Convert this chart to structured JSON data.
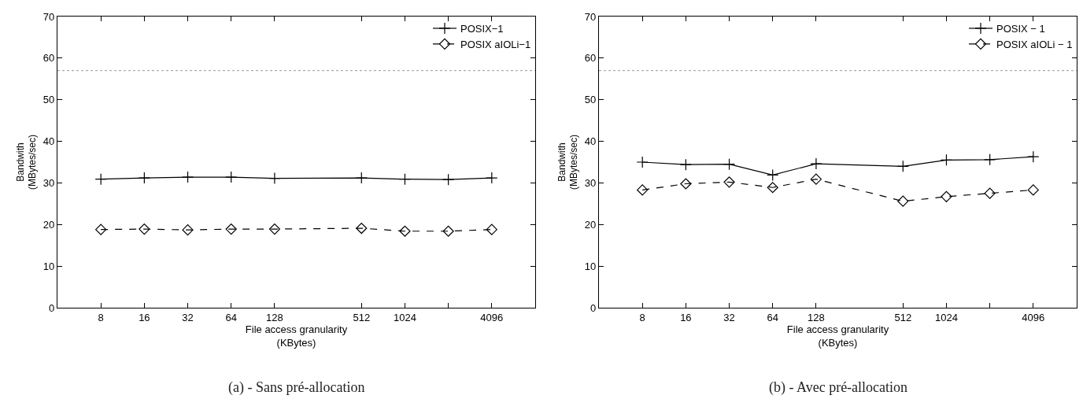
{
  "chart_data": [
    {
      "type": "line",
      "xlabel": "File access granularity\n(KBytes)",
      "ylabel": "Bandwith\n(MBytes/sec)",
      "x": [
        8,
        16,
        32,
        64,
        128,
        512,
        1024,
        2048,
        4096
      ],
      "log": "x",
      "xlim": [
        4,
        8192
      ],
      "xticks": [
        8,
        16,
        32,
        64,
        128,
        512,
        1024,
        {
          "value": 2048,
          "label": null
        },
        4096
      ],
      "ylim": [
        0,
        70
      ],
      "yticks": [
        0,
        10,
        20,
        30,
        40,
        50,
        60,
        70
      ],
      "grid": false,
      "legend": "top right",
      "series": [
        {
          "name": "POSIX−1",
          "color": "#000000",
          "marker": "cross",
          "line_style": "solid",
          "values": [
            30.9,
            31.2,
            31.4,
            31.4,
            31.1,
            31.2,
            30.9,
            30.8,
            31.2
          ]
        },
        {
          "name": "POSIX aIOLi−1",
          "color": "#000000",
          "marker": "diamond",
          "line_style": "dashed",
          "values": [
            18.8,
            18.9,
            18.7,
            18.9,
            18.9,
            19.1,
            18.4,
            18.4,
            18.8
          ]
        }
      ],
      "ref_lines": [
        {
          "axis": "y",
          "value": 57,
          "color": "#999999",
          "line_style": "dotted"
        }
      ],
      "annotations": [
        "(a) - Sans pré-allocation"
      ]
    },
    {
      "type": "line",
      "xlabel": "File access granularity\n(KBytes)",
      "ylabel": "Bandwith\n(MBytes/sec)",
      "x": [
        8,
        16,
        32,
        64,
        128,
        512,
        1024,
        2048,
        4096
      ],
      "log": "x",
      "xlim": [
        4,
        8192
      ],
      "xticks": [
        8,
        16,
        32,
        64,
        128,
        512,
        1024,
        {
          "value": 2048,
          "label": null
        },
        4096
      ],
      "ylim": [
        0,
        70
      ],
      "yticks": [
        0,
        10,
        20,
        30,
        40,
        50,
        60,
        70
      ],
      "grid": false,
      "legend": "top right",
      "series": [
        {
          "name": "POSIX − 1",
          "color": "#000000",
          "marker": "cross",
          "line_style": "solid",
          "values": [
            35.0,
            34.4,
            34.5,
            31.9,
            34.6,
            34.0,
            35.5,
            35.6,
            36.3
          ]
        },
        {
          "name": "POSIX aIOLi − 1",
          "color": "#000000",
          "marker": "diamond",
          "line_style": "dashed",
          "values": [
            28.3,
            29.8,
            30.2,
            28.9,
            30.9,
            25.6,
            26.7,
            27.5,
            28.3
          ]
        }
      ],
      "ref_lines": [
        {
          "axis": "y",
          "value": 57,
          "color": "#999999",
          "line_style": "dotted"
        }
      ],
      "annotations": [
        "(b) - Avec pré-allocation"
      ]
    }
  ]
}
